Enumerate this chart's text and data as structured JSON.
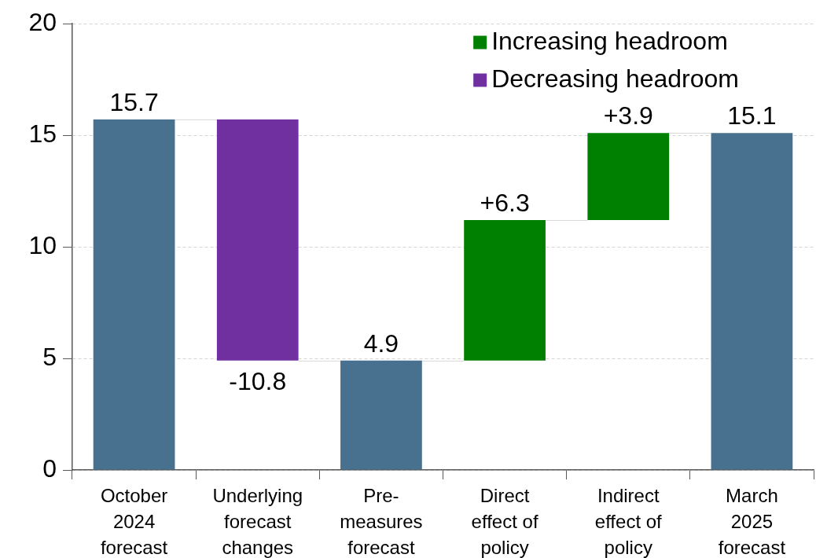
{
  "chart_data": {
    "type": "bar",
    "categories": [
      "October 2024 forecast",
      "Underlying forecast changes",
      "Pre-measures forecast",
      "Direct effect of policy",
      "Indirect effect of policy",
      "March 2025 forecast"
    ],
    "series": [
      {
        "color": "#48718f",
        "values": [
          15.7,
          null,
          4.9,
          null,
          null,
          15.1
        ],
        "base": [
          0,
          null,
          0,
          null,
          null,
          0
        ],
        "value_labels": [
          "15.7",
          null,
          "4.9",
          null,
          null,
          "15.1"
        ]
      },
      {
        "name": "Increasing headroom",
        "color": "#008000",
        "values": [
          null,
          null,
          null,
          6.3,
          3.9,
          null
        ],
        "base": [
          null,
          null,
          null,
          4.9,
          11.2,
          null
        ],
        "value_labels": [
          null,
          null,
          null,
          "+6.3",
          "+3.9",
          null
        ]
      },
      {
        "name": "Decreasing headroom",
        "color": "#7030a0",
        "values": [
          null,
          -10.8,
          null,
          null,
          null,
          null
        ],
        "base": [
          null,
          15.7,
          null,
          null,
          null,
          null
        ],
        "value_labels": [
          null,
          "-10.8",
          null,
          null,
          null,
          null
        ]
      }
    ],
    "ylim": [
      0,
      20
    ],
    "yticks": [
      0,
      5,
      10,
      15,
      20
    ],
    "grid": "y",
    "legend": "top right"
  }
}
